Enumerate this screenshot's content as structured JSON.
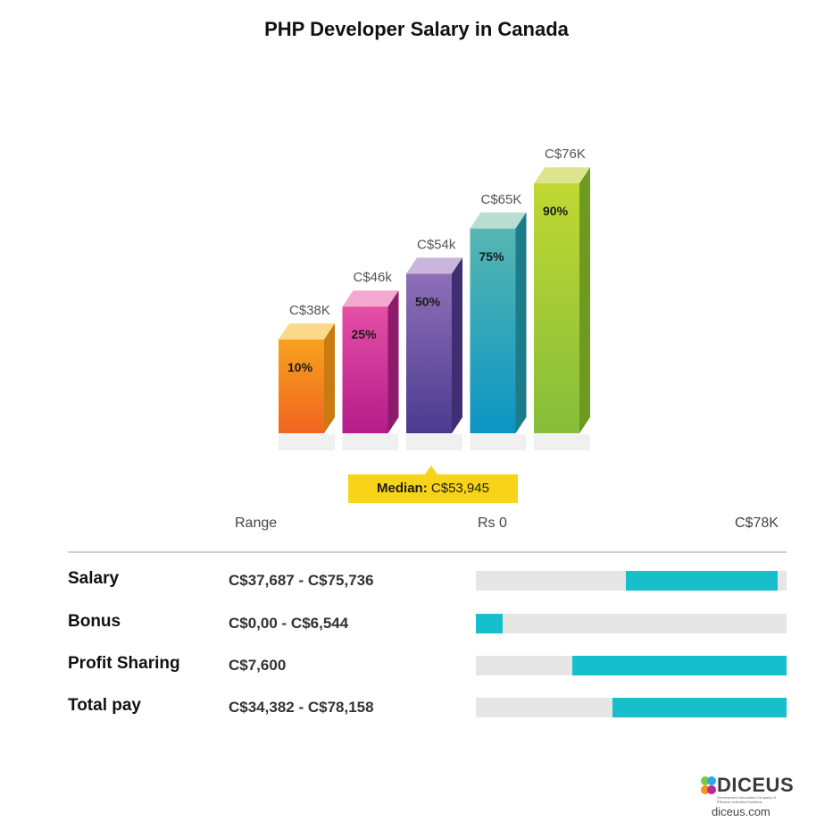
{
  "title": "PHP Developer Salary in Canada",
  "chart_data": {
    "type": "bar",
    "title": "PHP Developer Salary in Canada",
    "categories": [
      "10%",
      "25%",
      "50%",
      "75%",
      "90%"
    ],
    "values": [
      38,
      46,
      54,
      65,
      76
    ],
    "value_labels": [
      "C$38K",
      "C$46k",
      "C$54k",
      "C$65K",
      "C$76K"
    ],
    "unit": "C$ thousands",
    "colors": [
      {
        "front_top": "#f7a21e",
        "front_bottom": "#f2641f",
        "side": "#c97a10",
        "top": "#fbd98b"
      },
      {
        "front_top": "#e54fa5",
        "front_bottom": "#b51c8a",
        "side": "#8e1a6c",
        "top": "#f2a8cf"
      },
      {
        "front_top": "#8e6fb8",
        "front_bottom": "#4b3b8f",
        "side": "#3f2e72",
        "top": "#c9b6dd"
      },
      {
        "front_top": "#57b6b1",
        "front_bottom": "#0b95c4",
        "side": "#1d7c8a",
        "top": "#b9ddd0"
      },
      {
        "front_top": "#c0d832",
        "front_bottom": "#86bd3a",
        "side": "#6d9a1f",
        "top": "#dde68f"
      }
    ],
    "grid": false,
    "legend": "none"
  },
  "median": {
    "label": "Median:",
    "value": "C$53,945"
  },
  "range_axis": {
    "label": "Range",
    "min": "Rs 0",
    "max": "C$78K",
    "max_value": 78000
  },
  "rows": [
    {
      "label": "Salary",
      "range": "C$37,687 - C$75,736",
      "low": 37687,
      "high": 75736
    },
    {
      "label": "Bonus",
      "range": "C$0,00 - C$6,544",
      "low": 0,
      "high": 6544
    },
    {
      "label": "Profit Sharing",
      "range": "C$7,600",
      "low": 7600,
      "high": 7600
    },
    {
      "label": "Total pay",
      "range": "C$34,382 - C$78,158",
      "low": 34382,
      "high": 78158
    }
  ],
  "logo": {
    "name": "DICEUS",
    "tagline": "Development Innovation Company of Effective Unlimited Solutions",
    "site": "diceus.com"
  }
}
